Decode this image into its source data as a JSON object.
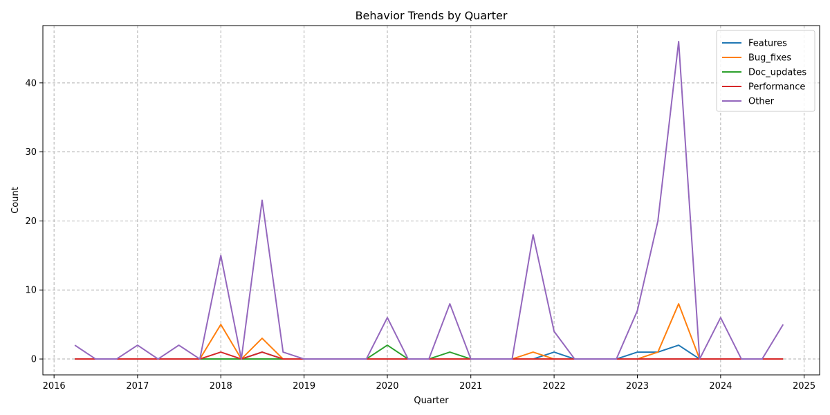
{
  "chart_data": {
    "type": "line",
    "title": "Behavior Trends by Quarter",
    "xlabel": "Quarter",
    "ylabel": "Count",
    "x": [
      "2016-04-01",
      "2016-07-01",
      "2016-10-01",
      "2017-01-01",
      "2017-04-01",
      "2017-07-01",
      "2017-10-01",
      "2018-01-01",
      "2018-04-01",
      "2018-07-01",
      "2018-10-01",
      "2019-01-01",
      "2019-04-01",
      "2019-07-01",
      "2019-10-01",
      "2020-01-01",
      "2020-04-01",
      "2020-07-01",
      "2020-10-01",
      "2021-01-01",
      "2021-04-01",
      "2021-07-01",
      "2021-10-01",
      "2022-01-01",
      "2022-04-01",
      "2022-07-01",
      "2022-10-01",
      "2023-01-01",
      "2023-04-01",
      "2023-07-01",
      "2023-10-01",
      "2024-01-01",
      "2024-04-01",
      "2024-07-01",
      "2024-10-01"
    ],
    "xlim": [
      "2015-11-13",
      "2025-03-10"
    ],
    "ylim": [
      -2.3,
      48.3
    ],
    "x_ticks": [
      "2016",
      "2017",
      "2018",
      "2019",
      "2020",
      "2021",
      "2022",
      "2023",
      "2024",
      "2025"
    ],
    "y_ticks": [
      0,
      10,
      20,
      30,
      40
    ],
    "grid": true,
    "legend_position": "top-right",
    "series": [
      {
        "name": "Features",
        "color": "#1f77b4",
        "values": [
          0,
          0,
          0,
          0,
          0,
          0,
          0,
          0,
          0,
          1,
          0,
          0,
          0,
          0,
          0,
          0,
          0,
          0,
          0,
          0,
          0,
          0,
          0,
          1,
          0,
          0,
          0,
          1,
          1,
          2,
          0,
          0,
          0,
          0,
          0
        ]
      },
      {
        "name": "Bug_fixes",
        "color": "#ff7f0e",
        "values": [
          0,
          0,
          0,
          0,
          0,
          0,
          0,
          5,
          0,
          3,
          0,
          0,
          0,
          0,
          0,
          0,
          0,
          0,
          0,
          0,
          0,
          0,
          1,
          0,
          0,
          0,
          0,
          0,
          1,
          8,
          0,
          0,
          0,
          0,
          0
        ]
      },
      {
        "name": "Doc_updates",
        "color": "#2ca02c",
        "values": [
          0,
          0,
          0,
          0,
          0,
          0,
          0,
          0,
          0,
          0,
          0,
          0,
          0,
          0,
          0,
          2,
          0,
          0,
          1,
          0,
          0,
          0,
          0,
          0,
          0,
          0,
          0,
          0,
          0,
          0,
          0,
          0,
          0,
          0,
          0
        ]
      },
      {
        "name": "Performance",
        "color": "#d62728",
        "values": [
          0,
          0,
          0,
          0,
          0,
          0,
          0,
          1,
          0,
          1,
          0,
          0,
          0,
          0,
          0,
          0,
          0,
          0,
          0,
          0,
          0,
          0,
          0,
          0,
          0,
          0,
          0,
          0,
          0,
          0,
          0,
          0,
          0,
          0,
          0
        ]
      },
      {
        "name": "Other",
        "color": "#9467bd",
        "values": [
          2,
          0,
          0,
          2,
          0,
          2,
          0,
          15,
          0,
          23,
          1,
          0,
          0,
          0,
          0,
          6,
          0,
          0,
          8,
          0,
          0,
          0,
          18,
          4,
          0,
          0,
          0,
          7,
          20,
          46,
          0,
          6,
          0,
          0,
          5
        ]
      }
    ]
  }
}
